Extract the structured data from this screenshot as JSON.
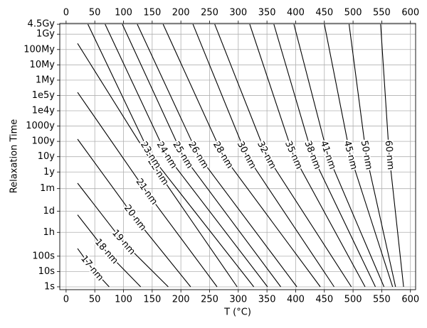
{
  "chart_data": {
    "type": "line",
    "y_label": "Relaxation Time",
    "x_label": "T (°C)",
    "xlim": [
      -11,
      609
    ],
    "xticks": [
      0,
      50,
      100,
      150,
      200,
      250,
      300,
      350,
      400,
      450,
      500,
      550,
      600
    ],
    "ylim": [
      0.65,
      1.6e+17
    ],
    "log_y": true,
    "grid": true,
    "yticks": [
      {
        "value": 1,
        "label": "1s"
      },
      {
        "value": 10,
        "label": "10s"
      },
      {
        "value": 100,
        "label": "100s"
      },
      {
        "value": 3600,
        "label": "1h"
      },
      {
        "value": 86400,
        "label": "1d"
      },
      {
        "value": 2592000,
        "label": "1m"
      },
      {
        "value": 31560000,
        "label": "1y"
      },
      {
        "value": 315600000,
        "label": "10y"
      },
      {
        "value": 3156000000,
        "label": "100y"
      },
      {
        "value": 31560000000,
        "label": "1000y"
      },
      {
        "value": 315600000000,
        "label": "1e4y"
      },
      {
        "value": 3156000000000,
        "label": "1e5y"
      },
      {
        "value": 31560000000000,
        "label": "1My"
      },
      {
        "value": 315600000000000,
        "label": "10My"
      },
      {
        "value": 3156000000000000,
        "label": "100My"
      },
      {
        "value": 31560000000000000,
        "label": "1Gy"
      },
      {
        "value": 142000000000000000,
        "label": "4.5Gy"
      }
    ],
    "series": [
      {
        "name": "17 nm",
        "color": "#000000",
        "x": [
          20,
          45,
          75
        ],
        "values": [
          316,
          16,
          1
        ]
      },
      {
        "name": "18 nm",
        "color": "#000000",
        "x": [
          20,
          70,
          130
        ],
        "values": [
          50000,
          200,
          1
        ]
      },
      {
        "name": "19 nm",
        "color": "#000000",
        "x": [
          20,
          100,
          178
        ],
        "values": [
          5900000,
          794,
          1
        ]
      },
      {
        "name": "20 nm",
        "color": "#000000",
        "x": [
          20,
          120,
          217
        ],
        "values": [
          4400000000,
          31600,
          1
        ]
      },
      {
        "name": "21 nm",
        "color": "#000000",
        "x": [
          20,
          140,
          263
        ],
        "values": [
          5000000000000,
          1600000,
          1
        ]
      },
      {
        "name": "22 nm",
        "color": "#000000",
        "x": [
          20,
          160,
          298
        ],
        "values": [
          7900000000000000,
          32000000,
          1
        ]
      },
      {
        "name": "23 nm",
        "color": "#000000",
        "x": [
          38,
          147,
          327
        ],
        "values": [
          142000000000000000,
          400000000,
          1
        ]
      },
      {
        "name": "24 nm",
        "color": "#000000",
        "x": [
          68,
          175,
          351
        ],
        "values": [
          142000000000000000,
          400000000,
          1
        ]
      },
      {
        "name": "25 nm",
        "color": "#000000",
        "x": [
          98,
          203,
          374
        ],
        "values": [
          142000000000000000,
          400000000,
          1
        ]
      },
      {
        "name": "26 nm",
        "color": "#000000",
        "x": [
          124,
          230,
          402
        ],
        "values": [
          142000000000000000,
          400000000,
          1
        ]
      },
      {
        "name": "28 nm",
        "color": "#000000",
        "x": [
          169,
          273,
          443
        ],
        "values": [
          142000000000000000,
          400000000,
          1
        ]
      },
      {
        "name": "30 nm",
        "color": "#000000",
        "x": [
          221,
          314,
          467
        ],
        "values": [
          142000000000000000,
          400000000,
          1
        ]
      },
      {
        "name": "32 nm",
        "color": "#000000",
        "x": [
          259,
          349,
          497
        ],
        "values": [
          142000000000000000,
          400000000,
          1
        ]
      },
      {
        "name": "35 nm",
        "color": "#000000",
        "x": [
          320,
          396,
          521
        ],
        "values": [
          142000000000000000,
          400000000,
          1
        ]
      },
      {
        "name": "38 nm",
        "color": "#000000",
        "x": [
          362,
          429,
          539
        ],
        "values": [
          142000000000000000,
          400000000,
          1
        ]
      },
      {
        "name": "41 nm",
        "color": "#000000",
        "x": [
          397,
          456,
          554
        ],
        "values": [
          142000000000000000,
          400000000,
          1
        ]
      },
      {
        "name": "45 nm",
        "color": "#000000",
        "x": [
          450,
          495,
          569
        ],
        "values": [
          142000000000000000,
          400000000,
          1
        ]
      },
      {
        "name": "50 nm",
        "color": "#000000",
        "x": [
          493,
          523,
          574
        ],
        "values": [
          142000000000000000,
          400000000,
          1
        ]
      },
      {
        "name": "60 nm",
        "color": "#000000",
        "x": [
          548,
          563,
          588
        ],
        "values": [
          142000000000000000,
          400000000,
          1
        ]
      }
    ]
  }
}
